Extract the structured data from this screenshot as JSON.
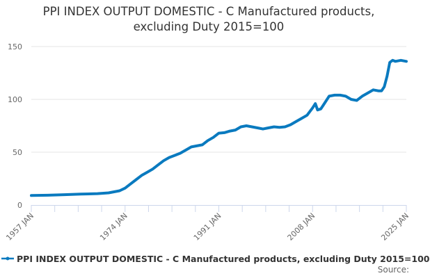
{
  "title_line1": "PPI INDEX OUTPUT DOMESTIC - C Manufactured products,",
  "title_line2": "excluding Duty 2015=100",
  "legend": {
    "label": "PPI INDEX OUTPUT DOMESTIC - C Manufactured products, excluding Duty 2015=100",
    "marker": "line-with-dot"
  },
  "source_label": "Source:",
  "colors": {
    "series": "#0a7abf",
    "grid": "#e6e6e6",
    "axis": "#ccd6eb",
    "text": "#333333",
    "tick": "#666666"
  },
  "chart_data": {
    "type": "line",
    "title": "PPI INDEX OUTPUT DOMESTIC - C Manufactured products, excluding Duty 2015=100",
    "xlabel": "",
    "ylabel": "",
    "ylim": [
      0,
      150
    ],
    "xlim": [
      "1957 JAN",
      "2025 JAN"
    ],
    "grid": true,
    "legend_position": "bottom",
    "y_ticks": [
      0,
      50,
      100,
      150
    ],
    "x_tick_labels": [
      "1957 JAN",
      "1974 JAN",
      "1991 JAN",
      "2008 JAN",
      "2025 JAN"
    ],
    "series": [
      {
        "name": "PPI INDEX OUTPUT DOMESTIC - C Manufactured products, excluding Duty 2015=100",
        "x": [
          1957,
          1960,
          1963,
          1966,
          1969,
          1971,
          1973,
          1974,
          1975,
          1976,
          1977,
          1978,
          1979,
          1980,
          1981,
          1982,
          1983,
          1984,
          1985,
          1986,
          1987,
          1988,
          1989,
          1990,
          1991,
          1992,
          1993,
          1994,
          1995,
          1996,
          1997,
          1998,
          1999,
          2000,
          2001,
          2002,
          2003,
          2004,
          2005,
          2006,
          2007,
          2008,
          2008.5,
          2008.9,
          2009.5,
          2010,
          2011,
          2012,
          2013,
          2014,
          2015,
          2016,
          2017,
          2018,
          2019,
          2020,
          2020.5,
          2021,
          2021.5,
          2022,
          2022.5,
          2023,
          2024,
          2025
        ],
        "values": [
          9,
          9.3,
          9.8,
          10.3,
          10.8,
          11.5,
          13.5,
          16,
          20,
          24,
          28,
          31,
          34,
          38,
          42,
          45,
          47,
          49,
          52,
          55,
          56,
          57,
          61,
          64,
          68,
          68.5,
          70,
          71,
          74,
          75,
          74,
          73,
          72,
          73,
          74,
          73.5,
          74,
          76,
          79,
          82,
          85,
          92,
          96,
          90,
          91,
          95,
          103,
          104,
          104,
          103,
          100,
          99,
          103,
          106,
          109,
          108,
          108,
          112,
          122,
          135,
          137,
          136,
          137,
          136
        ]
      }
    ]
  }
}
